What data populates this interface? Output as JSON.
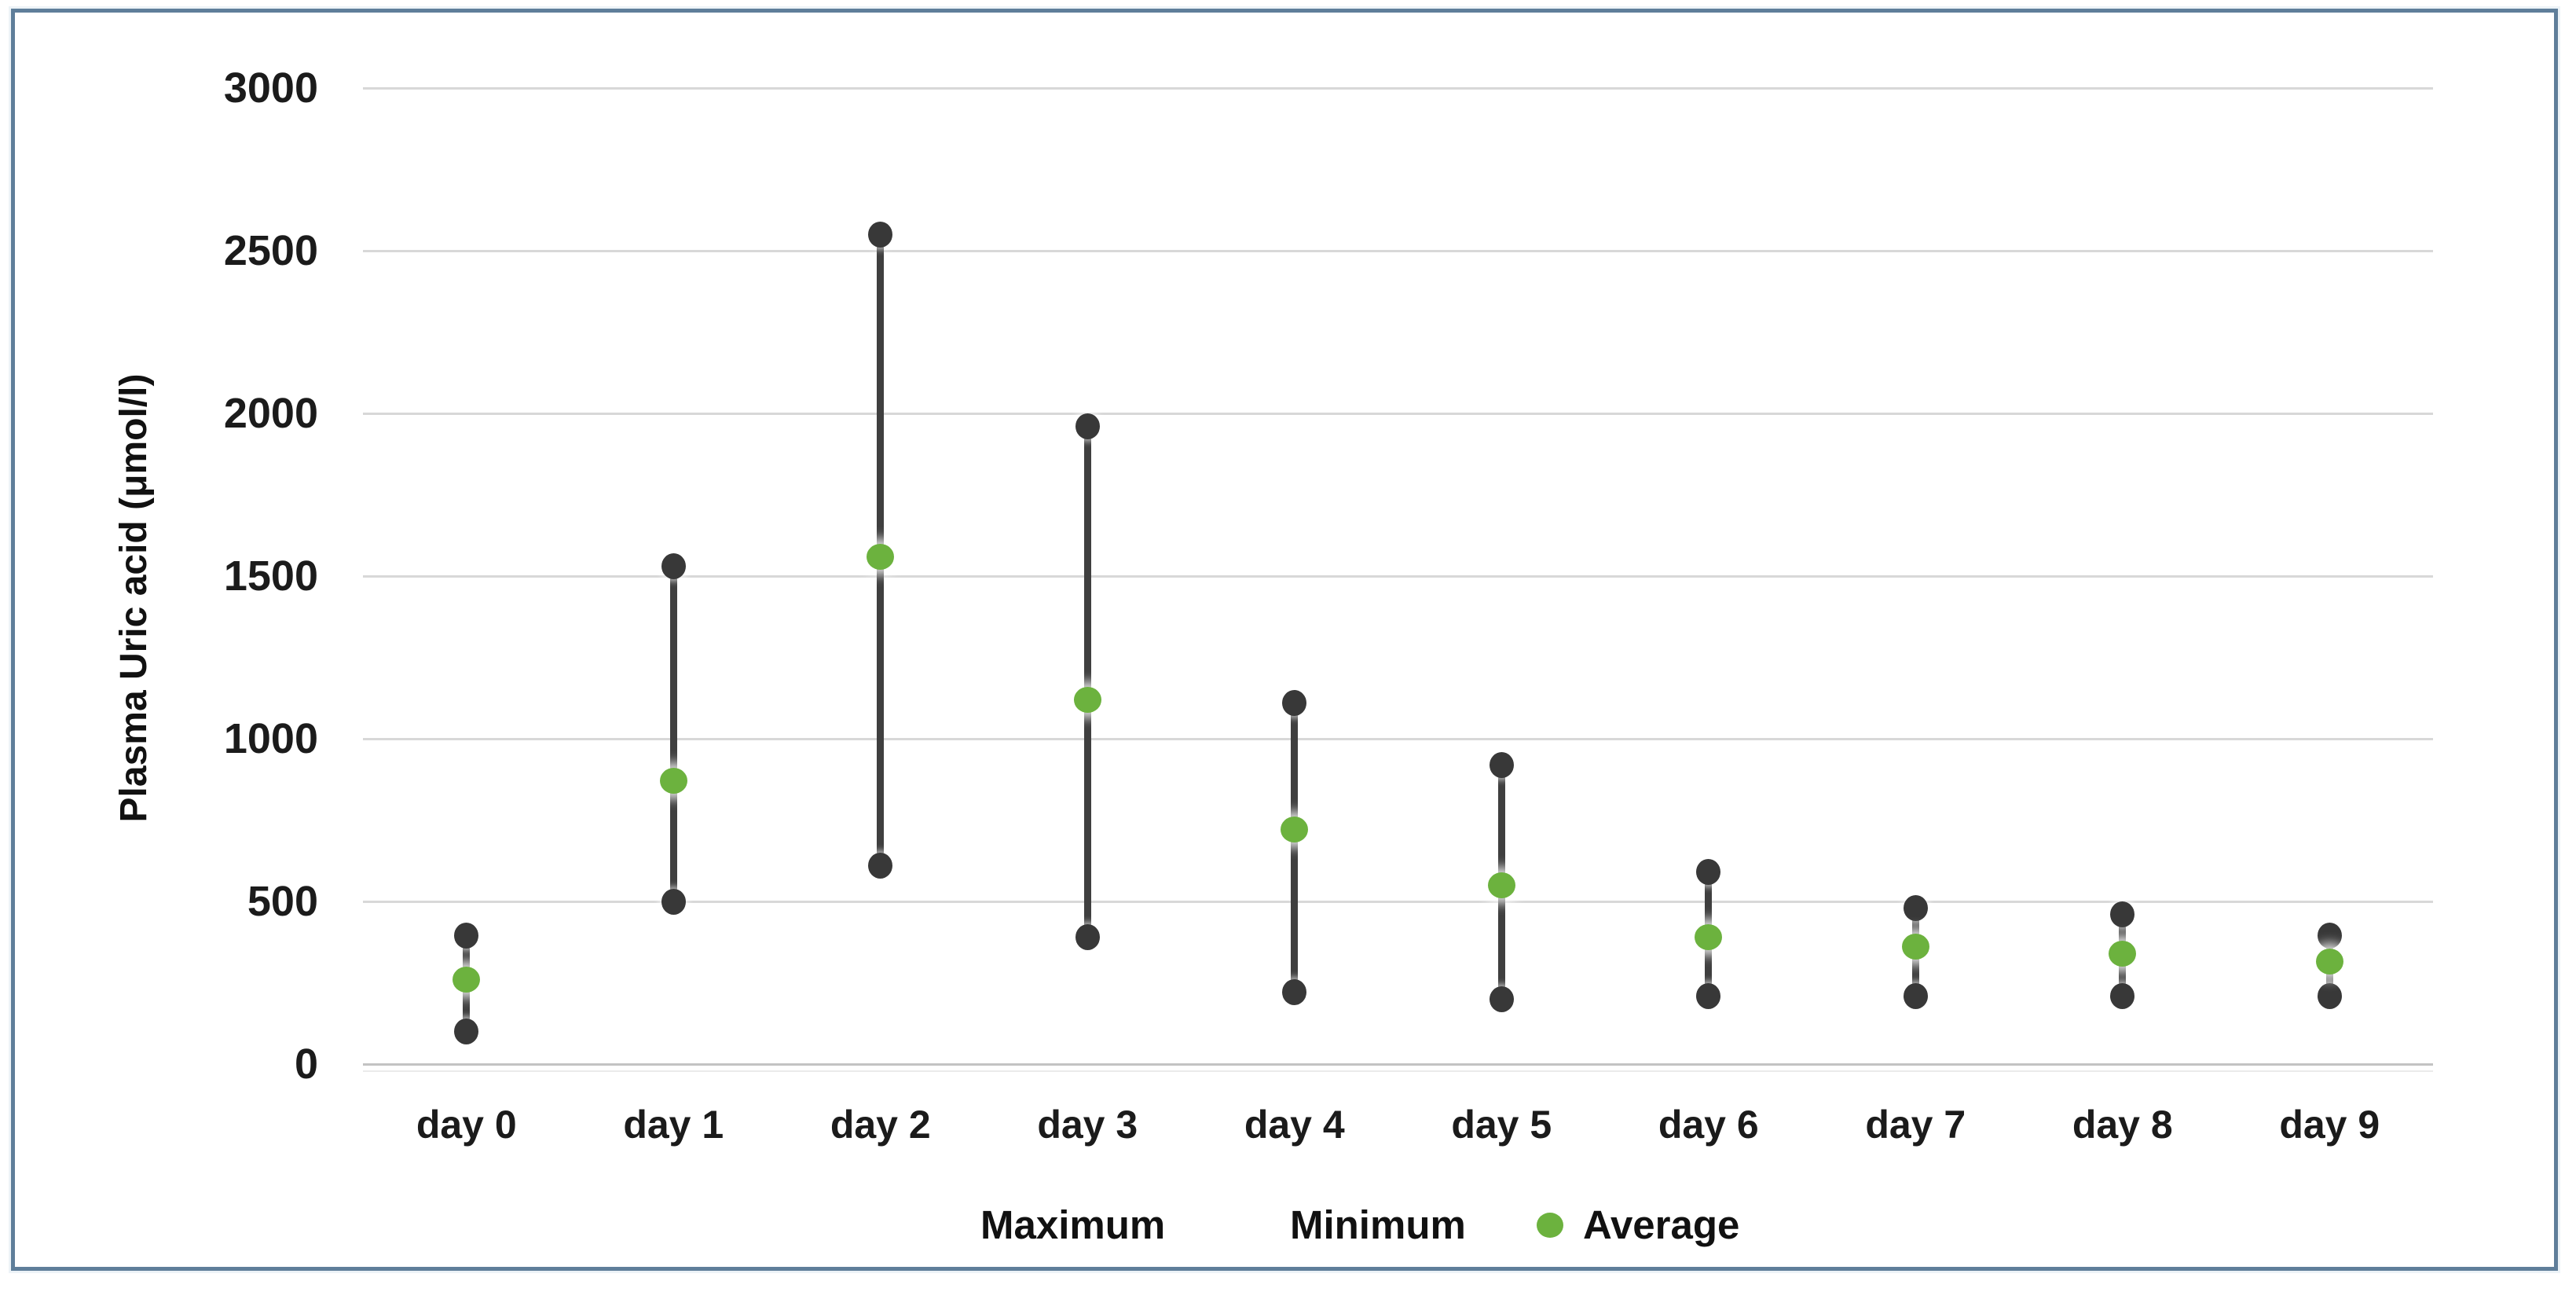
{
  "chart_data": {
    "type": "high-low-range",
    "title": "",
    "xlabel": "",
    "ylabel": "Plasma Uric acid (μmol/l)",
    "ylim": [
      0,
      3000
    ],
    "ytick_step": 500,
    "ytick_values": [
      0,
      500,
      1000,
      1500,
      2000,
      2500,
      3000
    ],
    "ytick_labels": [
      "0",
      "500",
      "1000",
      "1500",
      "2000",
      "2500",
      "3000"
    ],
    "grid": true,
    "legend_position": "bottom",
    "categories": [
      "day 0",
      "day 1",
      "day 2",
      "day 3",
      "day 4",
      "day 5",
      "day 6",
      "day 7",
      "day 8",
      "day 9"
    ],
    "series": [
      {
        "name": "Maximum",
        "values": [
          395,
          1530,
          2550,
          1960,
          1110,
          920,
          590,
          480,
          460,
          395
        ]
      },
      {
        "name": "Minimum",
        "values": [
          100,
          500,
          610,
          390,
          220,
          200,
          210,
          210,
          210,
          210
        ]
      },
      {
        "name": "Average",
        "values": [
          260,
          870,
          1560,
          1120,
          720,
          550,
          390,
          360,
          340,
          315
        ]
      }
    ],
    "legend": [
      {
        "label": "Maximum",
        "marker": "none"
      },
      {
        "label": "Minimum",
        "marker": "none"
      },
      {
        "label": "Average",
        "marker": "dot",
        "marker_color": "#6cb23e"
      }
    ],
    "colors": {
      "range_line": "#3f3f3f",
      "extreme_marker": "#383838",
      "average_marker": "#6cb23e",
      "gridline": "#d8d8d8",
      "axis_line": "#c3c3c3",
      "text": "#1b1b1b",
      "frame_border": "#5f7e9a",
      "background": "#ffffff"
    }
  }
}
